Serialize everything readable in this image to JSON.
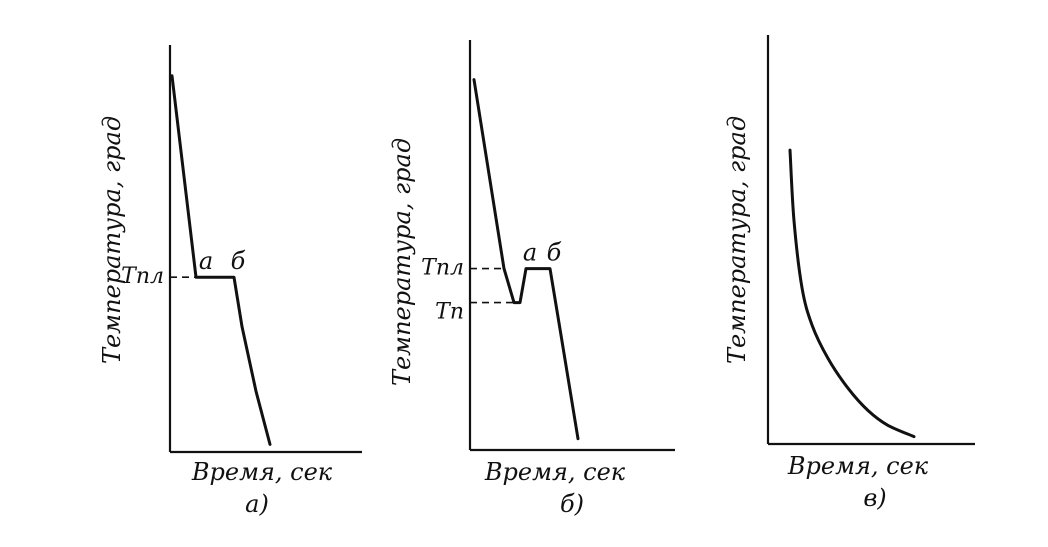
{
  "chart_data": [
    {
      "type": "line",
      "caption": "а)",
      "xlabel": "Время, сек",
      "ylabel": "Температура, град",
      "xlim": [
        0,
        10
      ],
      "ylim": [
        0,
        10
      ],
      "series": [
        {
          "points": [
            [
              0.1,
              9.9
            ],
            [
              1.3,
              4.6
            ],
            [
              3.2,
              4.6
            ],
            [
              3.6,
              3.3
            ],
            [
              4.3,
              1.6
            ],
            [
              5.0,
              0.2
            ]
          ]
        }
      ],
      "levels": [
        {
          "label": "Tпл",
          "y": 4.6
        }
      ],
      "point_labels": [
        {
          "label": "а",
          "x": 1.6,
          "y": 4.6
        },
        {
          "label": "б",
          "x": 3.2,
          "y": 4.6
        }
      ]
    },
    {
      "type": "line",
      "caption": "б)",
      "xlabel": "Время, сек",
      "ylabel": "Температура, град",
      "xlim": [
        0,
        10
      ],
      "ylim": [
        0,
        10
      ],
      "series": [
        {
          "points": [
            [
              0.2,
              9.8
            ],
            [
              1.7,
              4.8
            ],
            [
              2.2,
              3.9
            ],
            [
              2.5,
              3.9
            ],
            [
              2.8,
              4.8
            ],
            [
              4.0,
              4.8
            ],
            [
              4.5,
              3.2
            ],
            [
              5.4,
              0.3
            ]
          ]
        }
      ],
      "levels": [
        {
          "label": "Tпл",
          "y": 4.8
        },
        {
          "label": "Tп",
          "y": 3.9
        }
      ],
      "point_labels": [
        {
          "label": "а",
          "x": 2.8,
          "y": 4.8
        },
        {
          "label": "б",
          "x": 4.0,
          "y": 4.8
        }
      ]
    },
    {
      "type": "line",
      "caption": "в)",
      "xlabel": "Время, сек",
      "ylabel": "Температура, град",
      "xlim": [
        0,
        10
      ],
      "ylim": [
        0,
        10
      ],
      "series": [
        {
          "points": [
            [
              1.1,
              7.9
            ],
            [
              1.3,
              6.0
            ],
            [
              1.7,
              4.2
            ],
            [
              2.2,
              3.2
            ],
            [
              3.0,
              2.3
            ],
            [
              4.0,
              1.5
            ],
            [
              5.0,
              0.9
            ],
            [
              6.0,
              0.5
            ],
            [
              7.3,
              0.2
            ]
          ]
        }
      ],
      "levels": [],
      "point_labels": []
    }
  ]
}
